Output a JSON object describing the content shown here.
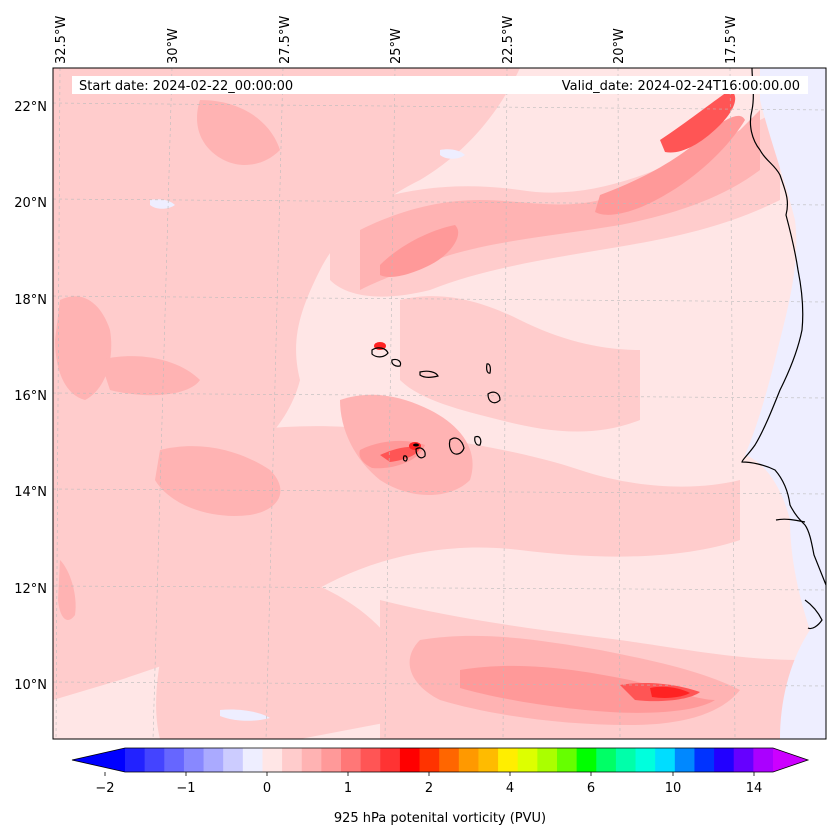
{
  "header": {
    "start_date": "Start date: 2024-02-22_00:00:00",
    "valid_date": "Valid_date: 2024-02-24T16:00:00.00"
  },
  "map": {
    "lon_labels": [
      "32.5°W",
      "30°W",
      "27.5°W",
      "25°W",
      "22.5°W",
      "20°W",
      "17.5°W"
    ],
    "lat_labels": [
      "22°N",
      "20°N",
      "18°N",
      "16°N",
      "14°N",
      "12°N",
      "10°N"
    ]
  },
  "colorbar": {
    "label": "925 hPa potenital vorticity (PVU)",
    "ticks": [
      "−2",
      "−1",
      "0",
      "1",
      "2",
      "4",
      "6",
      "10",
      "14"
    ],
    "colors": [
      "#0000ff",
      "#2222ff",
      "#4444ff",
      "#6666ff",
      "#8888ff",
      "#aaaaff",
      "#ccccff",
      "#eeeeff",
      "#ffe6e6",
      "#ffcccc",
      "#ffb3b3",
      "#ff9999",
      "#ff7777",
      "#ff5555",
      "#ff3333",
      "#ff0000",
      "#ff3300",
      "#ff6600",
      "#ff9900",
      "#ffbb00",
      "#ffee00",
      "#ddff00",
      "#aaff00",
      "#66ff00",
      "#00ff00",
      "#00ff66",
      "#00ffaa",
      "#00ffdd",
      "#00ddff",
      "#0088ff",
      "#0033ff",
      "#2200ff",
      "#6600ff",
      "#aa00ff",
      "#cc00ff"
    ],
    "extend_low_color": "#0000ff",
    "extend_high_color": "#cc00ff"
  },
  "colors": {
    "background": "#ffe6e6",
    "light_pink": "#ffcccc",
    "mid_pink": "#ffb3b3",
    "pink": "#ff9999",
    "red": "#ff5555",
    "deep_red": "#ff2222",
    "pale_blue": "#eeeeff"
  }
}
